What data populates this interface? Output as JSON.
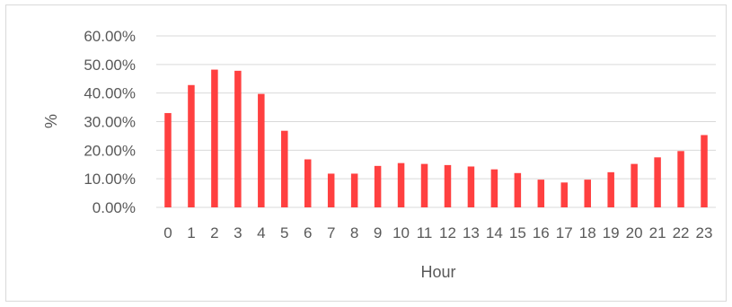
{
  "chart_data": {
    "type": "bar",
    "title": "",
    "xlabel": "Hour",
    "ylabel": "%",
    "ylim": [
      0,
      0.6
    ],
    "y_ticks": [
      0,
      0.1,
      0.2,
      0.3,
      0.4,
      0.5,
      0.6
    ],
    "y_tick_labels": [
      "0.00%",
      "10.00%",
      "20.00%",
      "30.00%",
      "40.00%",
      "50.00%",
      "60.00%"
    ],
    "categories": [
      "0",
      "1",
      "2",
      "3",
      "4",
      "5",
      "6",
      "7",
      "8",
      "9",
      "10",
      "11",
      "12",
      "13",
      "14",
      "15",
      "16",
      "17",
      "18",
      "19",
      "20",
      "21",
      "22",
      "23"
    ],
    "values": [
      0.33,
      0.428,
      0.482,
      0.478,
      0.397,
      0.268,
      0.168,
      0.118,
      0.118,
      0.145,
      0.155,
      0.152,
      0.148,
      0.143,
      0.133,
      0.12,
      0.097,
      0.087,
      0.097,
      0.123,
      0.152,
      0.175,
      0.197,
      0.253
    ],
    "grid": true,
    "legend": "none",
    "bar_color": "#ff4040",
    "grid_color": "#d9d9d9"
  }
}
